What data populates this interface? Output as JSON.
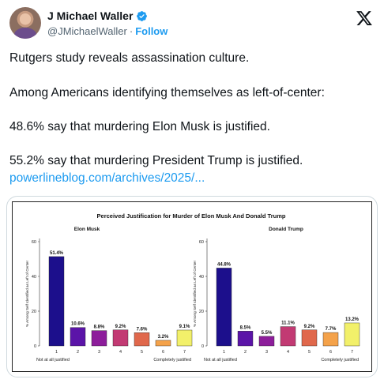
{
  "author": {
    "name": "J Michael Waller",
    "handle": "@JMichaelWaller",
    "separator": "·",
    "follow_label": "Follow"
  },
  "tweet": {
    "line1": "Rutgers study reveals assassination culture.",
    "line2": "Among Americans identifying themselves as left-of-center:",
    "line3": "48.6% say that murdering Elon Musk is justified.",
    "line4": "55.2% say that murdering President Trump is justified.",
    "link": "powerlineblog.com/archives/2025/..."
  },
  "colors": {
    "bar_colors": [
      "#1c0f8c",
      "#5b14a8",
      "#8d1e9b",
      "#c23a73",
      "#e0684c",
      "#f4a24a",
      "#f2f06a"
    ]
  },
  "chart_data": {
    "type": "bar",
    "title": "Perceived Justification for Murder of Elon Musk And Donald Trump",
    "ylabel": "% Among Self Identified as Left of Center",
    "categories": [
      "1",
      "2",
      "3",
      "4",
      "5",
      "6",
      "7"
    ],
    "ylim": [
      0,
      60
    ],
    "yticks": [
      0,
      20,
      40,
      60
    ],
    "xlabel_left": "Not at all justified",
    "xlabel_right": "Completely justified",
    "panels": [
      {
        "name": "Elon Musk",
        "values": [
          51.4,
          10.6,
          8.8,
          9.2,
          7.6,
          3.2,
          9.1
        ],
        "labels": [
          "51.4%",
          "10.6%",
          "8.8%",
          "9.2%",
          "7.6%",
          "3.2%",
          "9.1%"
        ]
      },
      {
        "name": "Donald Trump",
        "values": [
          44.8,
          8.5,
          5.5,
          11.1,
          9.2,
          7.7,
          13.2
        ],
        "labels": [
          "44.8%",
          "8.5%",
          "5.5%",
          "11.1%",
          "9.2%",
          "7.7%",
          "13.2%"
        ]
      }
    ]
  }
}
